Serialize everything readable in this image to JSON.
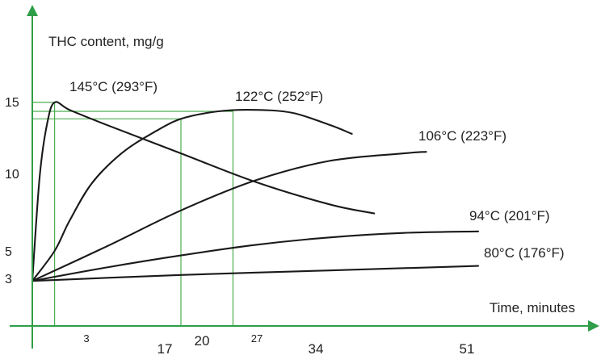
{
  "chart_data": {
    "type": "line",
    "ylabel": "THC content, mg/g",
    "xlabel": "Time, minutes",
    "y_ticks": [
      "3",
      "5",
      "10",
      "15"
    ],
    "x_ticks_small": [
      "3",
      "27"
    ],
    "x_ticks_big": [
      "17",
      "20",
      "34",
      "51"
    ],
    "xlim": [
      0,
      63
    ],
    "ylim": [
      0,
      19
    ],
    "grid": false,
    "colors": {
      "axis": "#2e9e48",
      "guide": "#4caf50",
      "curve": "#1a1a1a"
    },
    "series": [
      {
        "name": "145°C (293°F)",
        "points": [
          [
            0,
            3
          ],
          [
            1,
            10
          ],
          [
            2,
            13.5
          ],
          [
            3,
            14.9
          ],
          [
            5,
            14.4
          ],
          [
            10,
            13.4
          ],
          [
            20,
            11.5
          ],
          [
            30,
            9.6
          ],
          [
            40,
            8.1
          ],
          [
            46,
            7.5
          ]
        ]
      },
      {
        "name": "122°C (252°F)",
        "points": [
          [
            0,
            3
          ],
          [
            3,
            5
          ],
          [
            5,
            7
          ],
          [
            8,
            9.5
          ],
          [
            12,
            11.5
          ],
          [
            16,
            12.8
          ],
          [
            20,
            13.8
          ],
          [
            25,
            14.3
          ],
          [
            30,
            14.4
          ],
          [
            35,
            14.2
          ],
          [
            40,
            13.4
          ],
          [
            43,
            12.8
          ]
        ]
      },
      {
        "name": "106°C (223°F)",
        "points": [
          [
            0,
            3
          ],
          [
            10,
            5.3
          ],
          [
            20,
            7.7
          ],
          [
            30,
            9.7
          ],
          [
            40,
            11
          ],
          [
            50,
            11.5
          ],
          [
            53,
            11.6
          ]
        ]
      },
      {
        "name": "94°C (201°F)",
        "points": [
          [
            0,
            3
          ],
          [
            10,
            3.9
          ],
          [
            20,
            4.7
          ],
          [
            30,
            5.4
          ],
          [
            40,
            5.9
          ],
          [
            50,
            6.2
          ],
          [
            60,
            6.3
          ]
        ]
      },
      {
        "name": "80°C (176°F)",
        "points": [
          [
            0,
            3
          ],
          [
            20,
            3.4
          ],
          [
            40,
            3.7
          ],
          [
            60,
            4
          ]
        ]
      }
    ],
    "guide_lines": [
      {
        "x": 3,
        "y": 14.9
      },
      {
        "x": 20,
        "y": 13.8
      },
      {
        "x": 27,
        "y": 14.3
      }
    ]
  }
}
